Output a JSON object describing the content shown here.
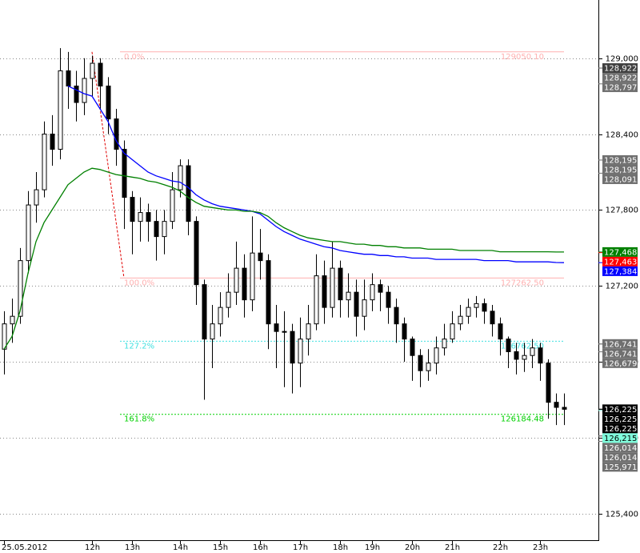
{
  "chart_data": {
    "type": "candlestick",
    "categories": [
      "25.05.2012",
      null,
      null,
      null,
      null,
      null,
      null,
      null,
      null,
      null,
      null,
      "12h",
      null,
      null,
      null,
      null,
      "13h",
      null,
      null,
      null,
      null,
      null,
      "14h",
      null,
      null,
      null,
      null,
      "15h",
      null,
      null,
      null,
      null,
      "16h",
      null,
      null,
      null,
      null,
      "17h",
      null,
      null,
      null,
      null,
      "18h",
      null,
      null,
      null,
      "19h",
      null,
      null,
      null,
      null,
      "20h",
      null,
      null,
      null,
      null,
      "21h",
      null,
      null,
      null,
      null,
      null,
      "22h",
      null,
      null,
      null,
      null,
      "23h",
      null,
      null,
      null
    ],
    "open": [
      126.7,
      126.9,
      126.96,
      127.4,
      127.84,
      127.96,
      128.4,
      128.28,
      128.9,
      128.78,
      128.65,
      128.84,
      128.96,
      128.78,
      128.52,
      128.28,
      127.9,
      127.71,
      127.78,
      127.71,
      127.59,
      127.71,
      127.96,
      128.15,
      127.71,
      127.21,
      126.78,
      126.9,
      127.03,
      127.15,
      127.34,
      127.09,
      127.46,
      127.4,
      126.9,
      126.84,
      126.84,
      126.59,
      126.78,
      126.9,
      127.28,
      127.03,
      127.34,
      127.09,
      127.15,
      126.96,
      127.09,
      127.21,
      127.15,
      127.03,
      126.9,
      126.78,
      126.65,
      126.53,
      126.59,
      126.71,
      126.78,
      126.9,
      126.96,
      127.03,
      127.06,
      127.0,
      126.9,
      126.78,
      126.68,
      126.62,
      126.65,
      126.71,
      126.59,
      126.28,
      126.24
    ],
    "high": [
      127.0,
      127.1,
      127.5,
      127.95,
      128.1,
      128.5,
      128.55,
      129.08,
      129.05,
      128.9,
      129.0,
      129.02,
      129.0,
      128.85,
      128.6,
      128.35,
      127.95,
      127.9,
      127.85,
      127.8,
      127.8,
      128.1,
      128.2,
      128.2,
      127.75,
      127.25,
      127.05,
      127.15,
      127.3,
      127.55,
      127.45,
      127.75,
      127.65,
      127.45,
      127.05,
      127.0,
      126.9,
      126.95,
      127.05,
      127.45,
      127.4,
      127.55,
      127.4,
      127.3,
      127.25,
      127.25,
      127.3,
      127.25,
      127.2,
      127.1,
      126.95,
      126.8,
      126.7,
      126.7,
      126.8,
      126.9,
      127.0,
      127.05,
      127.1,
      127.12,
      127.1,
      127.05,
      126.95,
      126.8,
      126.75,
      126.75,
      126.78,
      126.75,
      126.62,
      126.35,
      126.35
    ],
    "low": [
      126.5,
      126.75,
      126.9,
      127.3,
      127.7,
      127.9,
      128.15,
      128.2,
      128.6,
      128.5,
      128.55,
      128.7,
      128.6,
      128.4,
      128.15,
      127.65,
      127.45,
      127.55,
      127.55,
      127.4,
      127.45,
      127.65,
      127.9,
      127.6,
      127.05,
      126.3,
      126.55,
      126.8,
      126.95,
      127.05,
      126.95,
      127.0,
      127.25,
      126.7,
      126.55,
      126.4,
      126.35,
      126.4,
      126.65,
      126.85,
      126.9,
      126.95,
      126.95,
      126.95,
      126.8,
      126.85,
      127.0,
      127.0,
      126.9,
      126.75,
      126.6,
      126.45,
      126.4,
      126.45,
      126.5,
      126.65,
      126.75,
      126.85,
      126.9,
      126.95,
      126.9,
      126.8,
      126.65,
      126.55,
      126.5,
      126.52,
      126.55,
      126.45,
      126.15,
      126.1,
      126.1
    ],
    "close": [
      126.9,
      126.96,
      127.4,
      127.84,
      127.96,
      128.4,
      128.28,
      128.9,
      128.78,
      128.65,
      128.84,
      128.96,
      128.78,
      128.52,
      128.28,
      127.9,
      127.71,
      127.78,
      127.71,
      127.59,
      127.71,
      127.96,
      128.15,
      127.71,
      127.21,
      126.78,
      126.9,
      127.03,
      127.15,
      127.34,
      127.09,
      127.46,
      127.4,
      126.9,
      126.84,
      126.84,
      126.59,
      126.78,
      126.9,
      127.28,
      127.03,
      127.34,
      127.09,
      127.15,
      126.96,
      127.09,
      127.21,
      127.15,
      127.03,
      126.9,
      126.78,
      126.65,
      126.53,
      126.59,
      126.71,
      126.78,
      126.9,
      126.96,
      127.03,
      127.06,
      127.0,
      126.9,
      126.78,
      126.68,
      126.62,
      126.65,
      126.71,
      126.59,
      126.28,
      126.24,
      126.225
    ],
    "overlays": [
      {
        "color": "#0000ff",
        "values": [
          null,
          null,
          null,
          null,
          null,
          null,
          null,
          null,
          128.78,
          128.75,
          128.72,
          128.7,
          128.6,
          128.5,
          128.35,
          128.25,
          128.2,
          128.15,
          128.1,
          128.07,
          128.05,
          128.03,
          128.02,
          127.98,
          127.92,
          127.88,
          127.85,
          127.83,
          127.82,
          127.81,
          127.8,
          127.79,
          127.77,
          127.72,
          127.67,
          127.63,
          127.6,
          127.57,
          127.55,
          127.53,
          127.51,
          127.5,
          127.48,
          127.47,
          127.46,
          127.45,
          127.45,
          127.44,
          127.44,
          127.43,
          127.43,
          127.42,
          127.42,
          127.42,
          127.41,
          127.41,
          127.41,
          127.41,
          127.41,
          127.41,
          127.4,
          127.4,
          127.4,
          127.4,
          127.39,
          127.39,
          127.39,
          127.39,
          127.39,
          127.385,
          127.384
        ]
      },
      {
        "color": "#008000",
        "values": [
          126.7,
          126.8,
          127.0,
          127.3,
          127.55,
          127.7,
          127.8,
          127.9,
          128.0,
          128.05,
          128.1,
          128.13,
          128.12,
          128.1,
          128.08,
          128.07,
          128.06,
          128.05,
          128.03,
          128.02,
          128.0,
          127.98,
          127.95,
          127.9,
          127.86,
          127.83,
          127.82,
          127.81,
          127.8,
          127.8,
          127.79,
          127.79,
          127.78,
          127.75,
          127.7,
          127.66,
          127.63,
          127.6,
          127.58,
          127.57,
          127.56,
          127.55,
          127.55,
          127.54,
          127.53,
          127.53,
          127.52,
          127.52,
          127.51,
          127.51,
          127.5,
          127.5,
          127.5,
          127.49,
          127.49,
          127.49,
          127.49,
          127.48,
          127.48,
          127.48,
          127.48,
          127.48,
          127.47,
          127.47,
          127.47,
          127.47,
          127.47,
          127.47,
          127.47,
          127.468,
          127.468
        ]
      }
    ],
    "fibonacci": [
      {
        "level": "0.0%",
        "value": 129.0501,
        "price_label": "129050.10",
        "color": "#ffb0b0"
      },
      {
        "level": "100.0%",
        "value": 127.2625,
        "price_label": "127262.50",
        "color": "#ffb0b0"
      },
      {
        "level": "127.2%",
        "value": 126.7625,
        "price_label": "126762.50",
        "color": "#40e0e0"
      },
      {
        "level": "161.8%",
        "value": 126.1848,
        "price_label": "126184.48",
        "color": "#00d000"
      }
    ],
    "price_tags": [
      {
        "value": 128.922,
        "label": "128,922",
        "color": "#404040"
      },
      {
        "value": 128.922,
        "label": "128,922",
        "color": "#707070"
      },
      {
        "value": 128.797,
        "label": "128,797",
        "color": "#707070"
      },
      {
        "value": 128.195,
        "label": "128,195",
        "color": "#707070"
      },
      {
        "value": 128.195,
        "label": "128,195",
        "color": "#707070"
      },
      {
        "value": 128.091,
        "label": "128,091",
        "color": "#707070"
      },
      {
        "value": 127.468,
        "label": "127,468",
        "color": "#008000"
      },
      {
        "value": 127.463,
        "label": "127,463",
        "color": "#ff0000"
      },
      {
        "value": 127.384,
        "label": "127,384",
        "color": "#0000ff"
      },
      {
        "value": 126.741,
        "label": "126,741",
        "color": "#707070"
      },
      {
        "value": 126.741,
        "label": "126,741",
        "color": "#707070"
      },
      {
        "value": 126.679,
        "label": "126,679",
        "color": "#707070"
      },
      {
        "value": 126.225,
        "label": "126,225",
        "color": "#000000"
      },
      {
        "value": 126.225,
        "label": "126,225",
        "color": "#000000"
      },
      {
        "value": 126.225,
        "label": "126,225",
        "color": "#000000"
      },
      {
        "value": 126.215,
        "label": "126,215",
        "color": "#80ffdd"
      },
      {
        "value": 126.014,
        "label": "126,014",
        "color": "#707070"
      },
      {
        "value": 126.014,
        "label": "126,014",
        "color": "#707070"
      },
      {
        "value": 125.971,
        "label": "125,971",
        "color": "#707070"
      }
    ],
    "ylim": [
      125.19,
      129.46
    ],
    "yticks": [
      {
        "value": 125.4,
        "label": "125,400"
      },
      {
        "value": 126.0,
        "label": "126,000"
      },
      {
        "value": 126.6,
        "label": "126,600"
      },
      {
        "value": 127.2,
        "label": "127,200"
      },
      {
        "value": 127.8,
        "label": "127,800"
      },
      {
        "value": 128.4,
        "label": "128,400"
      },
      {
        "value": 129.0,
        "label": "129,000"
      }
    ],
    "grid": true
  }
}
